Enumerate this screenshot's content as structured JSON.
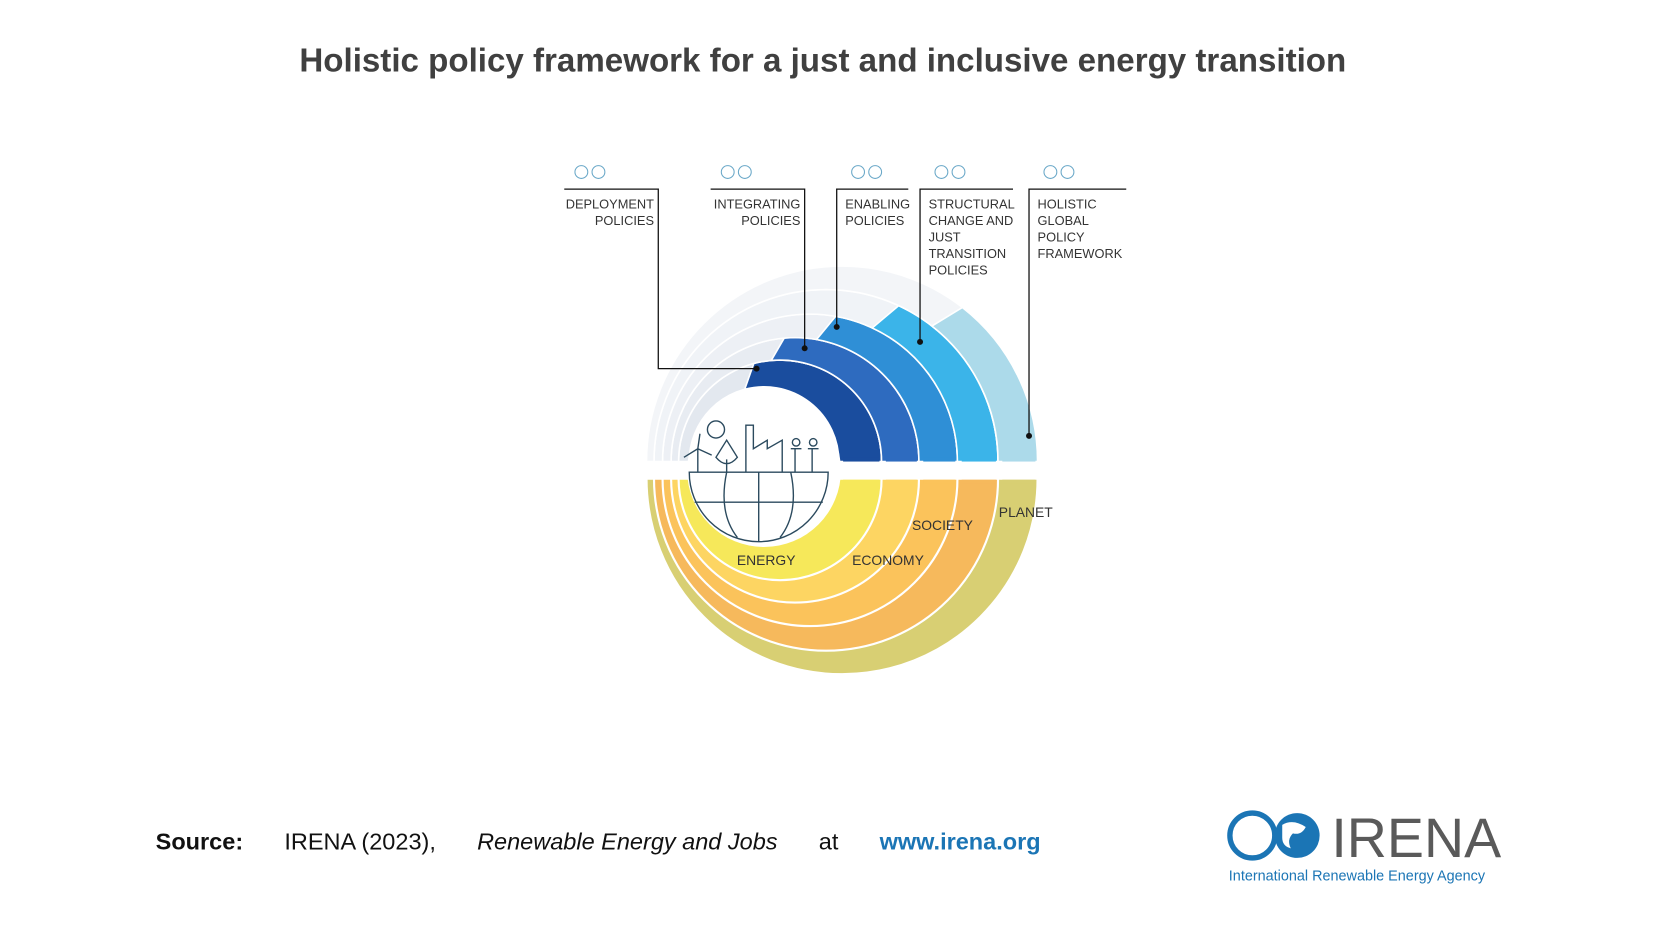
{
  "title": "Holistic policy framework for a just and inclusive energy transition",
  "policies": [
    {
      "lines": [
        "DEPLOYMENT",
        "POLICIES"
      ]
    },
    {
      "lines": [
        "INTEGRATING",
        "POLICIES"
      ]
    },
    {
      "lines": [
        "ENABLING",
        "POLICIES"
      ]
    },
    {
      "lines": [
        "STRUCTURAL",
        "CHANGE AND",
        "JUST",
        "TRANSITION",
        "POLICIES"
      ]
    },
    {
      "lines": [
        "HOLISTIC",
        "GLOBAL",
        "POLICY",
        "FRAMEWORK"
      ]
    }
  ],
  "domains": [
    "ENERGY",
    "ECONOMY",
    "SOCIETY",
    "PLANET"
  ],
  "source": {
    "label": "Source:",
    "citation": "IRENA (2023),",
    "work": "Renewable Energy and Jobs",
    "connector": "at",
    "link": "www.irena.org"
  },
  "logo": {
    "name": "IRENA",
    "tagline": "International Renewable Energy Agency"
  }
}
